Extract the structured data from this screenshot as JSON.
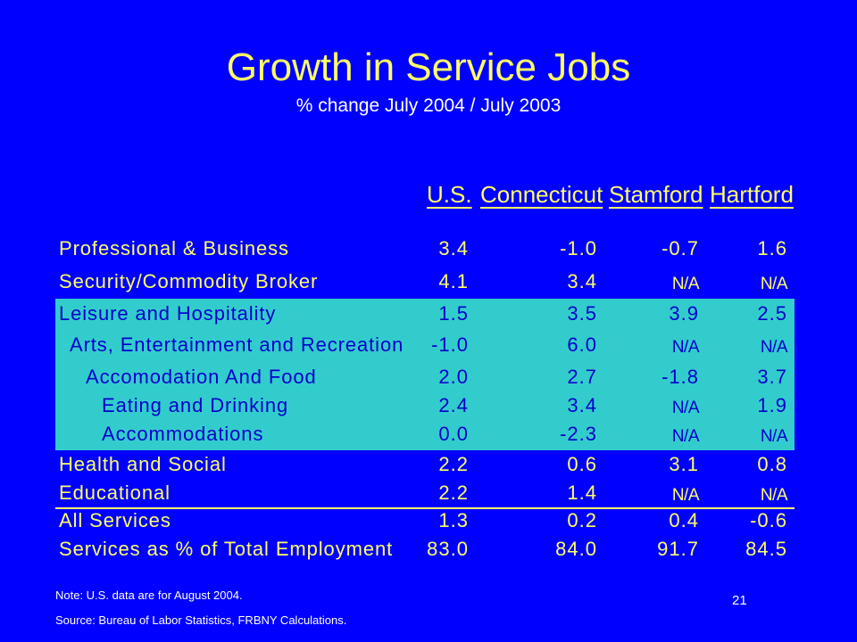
{
  "slide": {
    "title": "Growth in Service Jobs",
    "subtitle": "% change July 2004 / July 2003",
    "page_number": "21",
    "note": "Note: U.S. data are for August 2004.",
    "source": "Source: Bureau of Labor Statistics, FRBNY Calculations.",
    "colors": {
      "background": "#0000ff",
      "text": "#ffff66",
      "highlight_band": "#33cccc",
      "highlight_text": "#0000cc"
    }
  },
  "table": {
    "columns": [
      "U.S.",
      "Connecticut",
      "Stamford",
      "Hartford"
    ],
    "rows": [
      {
        "label": "Professional & Business",
        "values": [
          "3.4",
          "-1.0",
          "-0.7",
          "1.6"
        ]
      },
      {
        "label": "Security/Commodity Broker",
        "values": [
          "4.1",
          "3.4",
          "N/A",
          "N/A"
        ]
      },
      {
        "label": "Leisure and Hospitality",
        "values": [
          "1.5",
          "3.5",
          "3.9",
          "2.5"
        ]
      },
      {
        "label": "Arts, Entertainment and Recreation",
        "values": [
          "-1.0",
          "6.0",
          "N/A",
          "N/A"
        ]
      },
      {
        "label": "Accomodation And Food",
        "values": [
          "2.0",
          "2.7",
          "-1.8",
          "3.7"
        ]
      },
      {
        "label": "Eating and Drinking",
        "values": [
          "2.4",
          "3.4",
          "N/A",
          "1.9"
        ]
      },
      {
        "label": "Accommodations",
        "values": [
          "0.0",
          "-2.3",
          "N/A",
          "N/A"
        ]
      },
      {
        "label": "Health and Social",
        "values": [
          "2.2",
          "0.6",
          "3.1",
          "0.8"
        ]
      },
      {
        "label": "Educational",
        "values": [
          "2.2",
          "1.4",
          "N/A",
          "N/A"
        ]
      },
      {
        "label": "All Services",
        "values": [
          "1.3",
          "0.2",
          "0.4",
          "-0.6"
        ]
      },
      {
        "label": "Services as % of Total Employment",
        "values": [
          "83.0",
          "84.0",
          "91.7",
          "84.5"
        ]
      }
    ]
  }
}
